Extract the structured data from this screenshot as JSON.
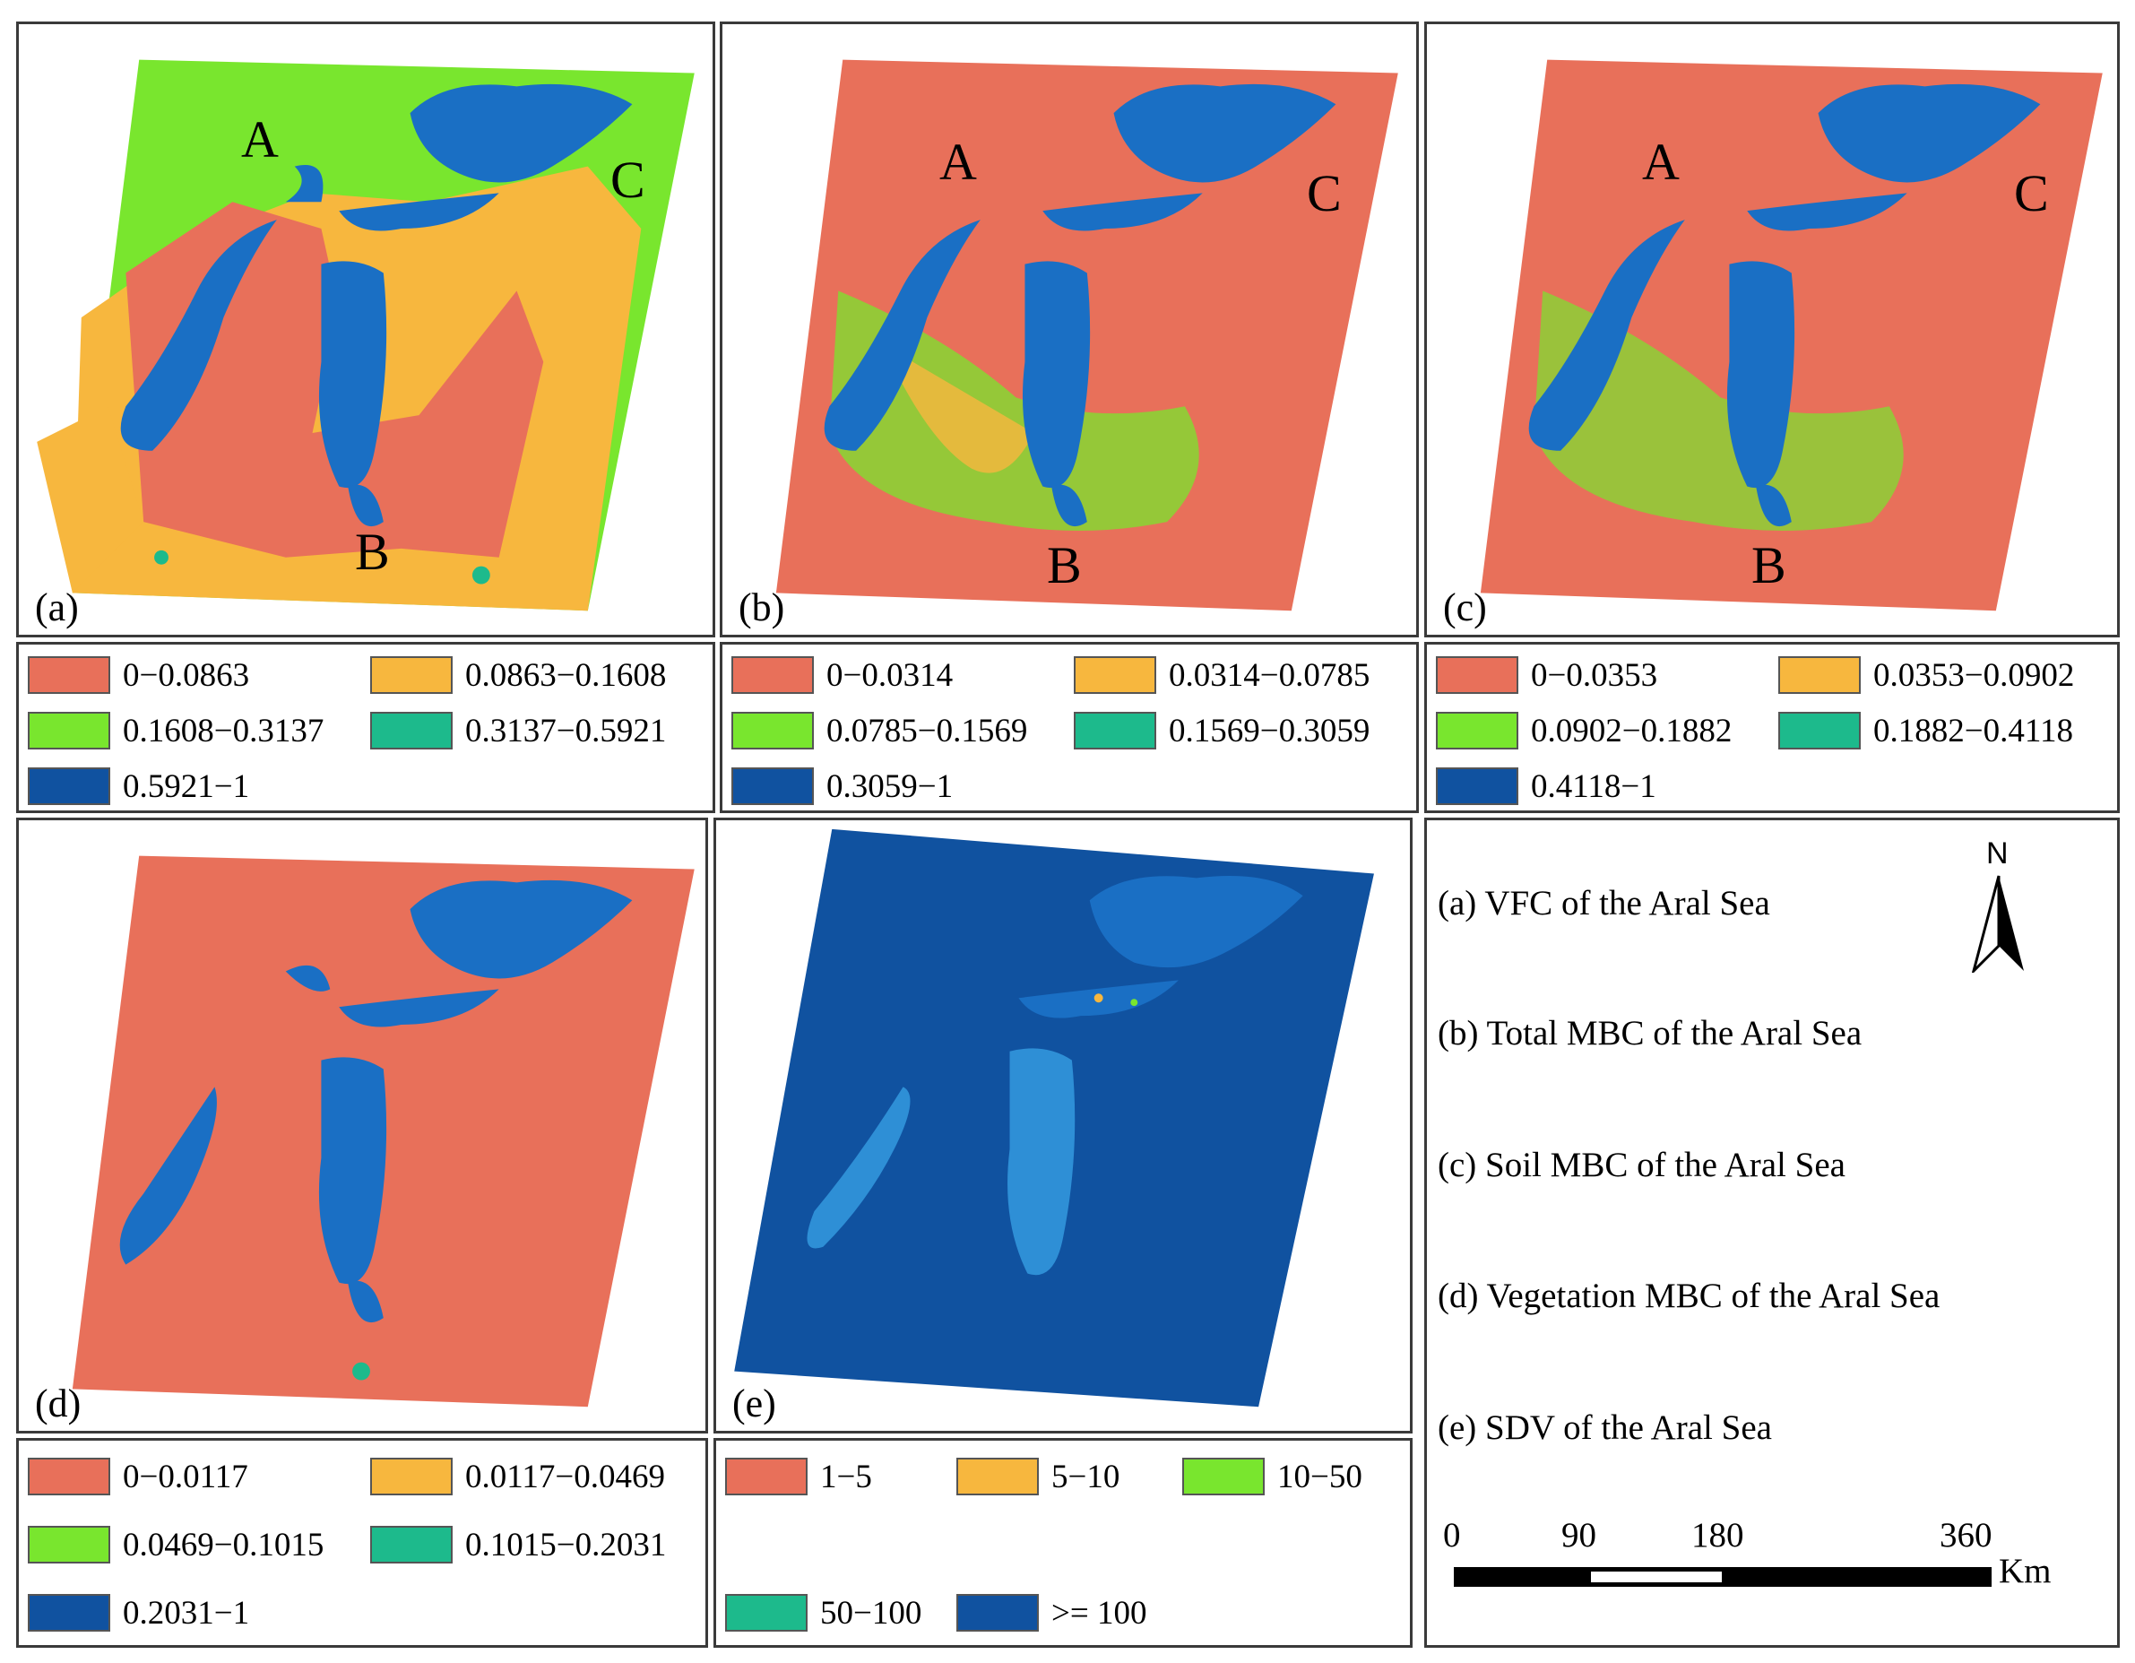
{
  "colors": {
    "c1": "#e8705a",
    "c2": "#f7b73e",
    "c3": "#79e62e",
    "c4": "#1dba8c",
    "c5": "#1052a0",
    "water": "#1a6fc4",
    "water_light": "#2e8fd6"
  },
  "panels": [
    {
      "label": "(a)",
      "letters": [
        "A",
        "B",
        "C"
      ],
      "legend": [
        "0−0.0863",
        "0.0863−0.1608",
        "0.1608−0.3137",
        "0.3137−0.5921",
        "0.5921−1"
      ]
    },
    {
      "label": "(b)",
      "letters": [
        "A",
        "B",
        "C"
      ],
      "legend": [
        "0−0.0314",
        "0.0314−0.0785",
        "0.0785−0.1569",
        "0.1569−0.3059",
        "0.3059−1"
      ]
    },
    {
      "label": "(c)",
      "letters": [
        "A",
        "B",
        "C"
      ],
      "legend": [
        "0−0.0353",
        "0.0353−0.0902",
        "0.0902−0.1882",
        "0.1882−0.4118",
        "0.4118−1"
      ]
    },
    {
      "label": "(d)",
      "legend": [
        "0−0.0117",
        "0.0117−0.0469",
        "0.0469−0.1015",
        "0.1015−0.2031",
        "0.2031−1"
      ]
    },
    {
      "label": "(e)",
      "legend": [
        "1−5",
        "5−10",
        "10−50",
        "50−100",
        ">= 100"
      ]
    }
  ],
  "info": {
    "lines": [
      "(a)  VFC of  the Aral Sea",
      "(b)  Total MBC of  the Aral Sea",
      "(c)  Soil MBC of  the Aral Sea",
      "(d)  Vegetation MBC of  the Aral Sea",
      "(e)  SDV of  the Aral Sea"
    ],
    "north_label": "N",
    "north_icon": "north-arrow-icon",
    "scale_ticks": [
      "0",
      "90",
      "180",
      "360"
    ],
    "scale_unit": "Km"
  }
}
